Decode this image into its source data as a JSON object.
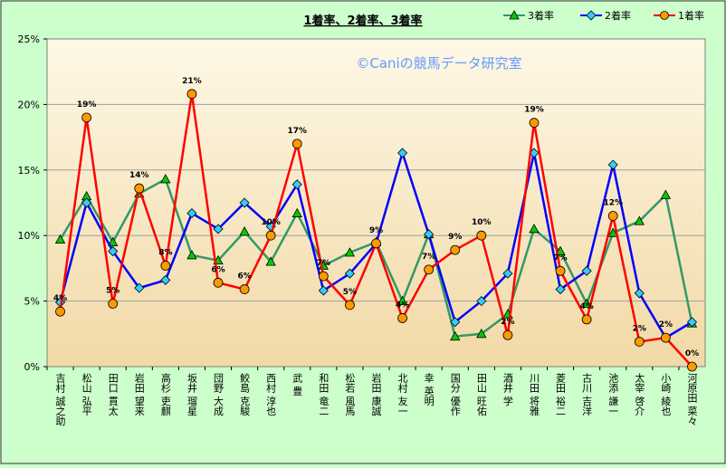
{
  "chart_data": {
    "type": "line",
    "title": "1着率、2着率、3着率",
    "watermark": "©Caniの競馬データ研究室",
    "categories": [
      "吉村 誠之助",
      "松山 弘平",
      "田口 貫太",
      "岩田 望来",
      "高杉 吏麒",
      "坂井 瑠星",
      "団野 大成",
      "鮫島 克駿",
      "西村 淳也",
      "武 豊",
      "和田 竜二",
      "松若 風馬",
      "岩田 康誠",
      "北村 友一",
      "幸 英明",
      "国分 優作",
      "田山 旺佑",
      "酒井 学",
      "川田 将雅",
      "菱田 裕二",
      "古川 吉洋",
      "池添 謙一",
      "太宰 啓介",
      "小崎 綾也",
      "河原田 菜々"
    ],
    "ylim": [
      0,
      25
    ],
    "yticks": [
      "0%",
      "5%",
      "10%",
      "15%",
      "20%",
      "25%"
    ],
    "legend_position": "top-right",
    "series": [
      {
        "name": "3着率",
        "color": "#339966",
        "marker": "triangle",
        "marker_color": "#00CC00",
        "values": [
          9.7,
          13,
          9.5,
          13.2,
          14.3,
          8.5,
          8.1,
          10.3,
          8.0,
          11.7,
          7.7,
          8.7,
          9.5,
          5.0,
          10.1,
          2.3,
          2.5,
          4.0,
          10.5,
          8.8,
          4.8,
          10.2,
          11.1,
          13.1,
          3.3
        ]
      },
      {
        "name": "2着率",
        "color": "#0000FF",
        "marker": "diamond",
        "marker_color": "#33CCFF",
        "values": [
          4.9,
          12.5,
          8.8,
          6.0,
          6.6,
          11.7,
          10.5,
          12.5,
          10.7,
          13.9,
          5.8,
          7.1,
          9.4,
          16.3,
          10.1,
          3.4,
          5.0,
          7.1,
          16.3,
          5.9,
          7.3,
          15.4,
          5.6,
          2.2,
          3.4
        ]
      },
      {
        "name": "1着率",
        "color": "#FF0000",
        "marker": "circle",
        "marker_color": "#FF9900",
        "values": [
          4.2,
          19,
          4.8,
          13.6,
          7.7,
          20.8,
          6.4,
          5.9,
          10.0,
          17.0,
          6.9,
          4.7,
          9.4,
          3.7,
          7.4,
          8.9,
          10.0,
          2.4,
          18.6,
          7.3,
          3.6,
          11.5,
          1.9,
          2.2,
          0
        ],
        "labels": [
          "4%",
          "19%",
          "5%",
          "14%",
          "8%",
          "21%",
          "6%",
          "6%",
          "10%",
          "17%",
          "7%",
          "5%",
          "9%",
          "4%",
          "7%",
          "9%",
          "10%",
          "2%",
          "19%",
          "7%",
          "4%",
          "12%",
          "2%",
          "2%",
          "0%"
        ]
      }
    ]
  }
}
